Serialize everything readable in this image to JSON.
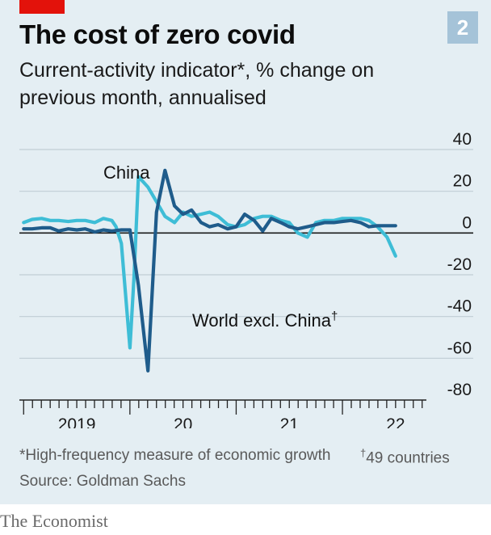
{
  "header": {
    "title": "The cost of zero covid",
    "badge": "2",
    "subtitle": "Current-activity indicator*, % change on previous month, annualised"
  },
  "footer": {
    "footnote_growth": "*High-frequency measure of economic growth",
    "footnote_countries_mark": "†",
    "footnote_countries": "49 countries",
    "source": "Source: Goldman Sachs",
    "brand": "The Economist"
  },
  "colors": {
    "background": "#e4eef3",
    "china": "#3ebdd6",
    "world": "#1f5c8b",
    "accent": "#e3120b"
  },
  "chart_data": {
    "type": "line",
    "ylim": [
      -80,
      40
    ],
    "yticks": [
      40,
      20,
      0,
      -20,
      -40,
      -60,
      -80
    ],
    "ytick_labels": [
      "40",
      "20",
      "0",
      "-20",
      "-40",
      "-60",
      "-80"
    ],
    "x_labels": [
      {
        "label": "2019",
        "x": 2019.5
      },
      {
        "label": "20",
        "x": 2020.5
      },
      {
        "label": "21",
        "x": 2021.5
      },
      {
        "label": "22",
        "x": 2022.5
      }
    ],
    "x_start": 2018.96,
    "x_end": 2022.79,
    "grid": true,
    "series": [
      {
        "key": "china",
        "name": "China",
        "annotation": "China",
        "color": "#3ebdd6",
        "points": [
          [
            2019.0,
            5
          ],
          [
            2019.08,
            6.5
          ],
          [
            2019.17,
            7
          ],
          [
            2019.25,
            6
          ],
          [
            2019.33,
            6
          ],
          [
            2019.42,
            5.5
          ],
          [
            2019.5,
            6
          ],
          [
            2019.58,
            6
          ],
          [
            2019.67,
            5
          ],
          [
            2019.75,
            7
          ],
          [
            2019.83,
            6
          ],
          [
            2019.87,
            3
          ],
          [
            2019.92,
            -5
          ],
          [
            2019.96,
            -30
          ],
          [
            2020.0,
            -55
          ],
          [
            2020.04,
            -20
          ],
          [
            2020.08,
            27
          ],
          [
            2020.17,
            22
          ],
          [
            2020.25,
            15
          ],
          [
            2020.33,
            8
          ],
          [
            2020.42,
            5
          ],
          [
            2020.5,
            10
          ],
          [
            2020.58,
            8
          ],
          [
            2020.67,
            9
          ],
          [
            2020.75,
            10
          ],
          [
            2020.83,
            8
          ],
          [
            2020.92,
            4
          ],
          [
            2021.0,
            3
          ],
          [
            2021.08,
            4
          ],
          [
            2021.17,
            7
          ],
          [
            2021.25,
            8
          ],
          [
            2021.33,
            8
          ],
          [
            2021.42,
            6
          ],
          [
            2021.5,
            5
          ],
          [
            2021.58,
            0
          ],
          [
            2021.67,
            -2
          ],
          [
            2021.75,
            5
          ],
          [
            2021.83,
            6
          ],
          [
            2021.92,
            6
          ],
          [
            2022.0,
            7
          ],
          [
            2022.08,
            7
          ],
          [
            2022.17,
            7
          ],
          [
            2022.25,
            6
          ],
          [
            2022.33,
            3
          ],
          [
            2022.42,
            -2
          ],
          [
            2022.5,
            -11
          ]
        ]
      },
      {
        "key": "world",
        "name": "World excl. China",
        "annotation": "World excl. China",
        "annotation_mark": "†",
        "color": "#1f5c8b",
        "points": [
          [
            2019.0,
            2
          ],
          [
            2019.08,
            2
          ],
          [
            2019.17,
            2.5
          ],
          [
            2019.25,
            2.5
          ],
          [
            2019.33,
            1
          ],
          [
            2019.42,
            2
          ],
          [
            2019.5,
            1.5
          ],
          [
            2019.58,
            2
          ],
          [
            2019.67,
            0.5
          ],
          [
            2019.75,
            1.5
          ],
          [
            2019.83,
            1
          ],
          [
            2019.92,
            1.5
          ],
          [
            2020.0,
            1.5
          ],
          [
            2020.08,
            -25
          ],
          [
            2020.17,
            -66
          ],
          [
            2020.25,
            10
          ],
          [
            2020.33,
            30
          ],
          [
            2020.42,
            13
          ],
          [
            2020.5,
            9
          ],
          [
            2020.58,
            11
          ],
          [
            2020.67,
            5
          ],
          [
            2020.75,
            3
          ],
          [
            2020.83,
            4
          ],
          [
            2020.92,
            2
          ],
          [
            2021.0,
            3
          ],
          [
            2021.08,
            9
          ],
          [
            2021.17,
            6
          ],
          [
            2021.25,
            1
          ],
          [
            2021.33,
            7
          ],
          [
            2021.42,
            5
          ],
          [
            2021.5,
            3
          ],
          [
            2021.58,
            2
          ],
          [
            2021.67,
            3
          ],
          [
            2021.75,
            4
          ],
          [
            2021.83,
            5
          ],
          [
            2021.92,
            5
          ],
          [
            2022.0,
            5.5
          ],
          [
            2022.08,
            6
          ],
          [
            2022.17,
            5
          ],
          [
            2022.25,
            3
          ],
          [
            2022.33,
            3.5
          ],
          [
            2022.42,
            3.5
          ],
          [
            2022.5,
            3.5
          ]
        ]
      }
    ]
  }
}
